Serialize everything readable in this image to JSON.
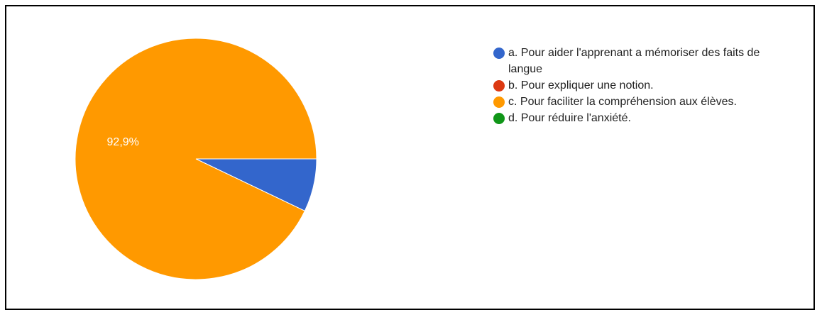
{
  "chart_data": {
    "type": "pie",
    "title": "",
    "categories": [
      "a. Pour aider l'apprenant a mémoriser des faits de langue",
      "b. Pour expliquer une notion.",
      "c. Pour faciliter la compréhension aux élèves.",
      "d. Pour réduire l'anxiété."
    ],
    "values": [
      7.1,
      0,
      92.9,
      0
    ],
    "colors": [
      "#3366cc",
      "#dc3912",
      "#ff9900",
      "#109618"
    ],
    "data_labels": [
      "",
      "",
      "92,9%",
      ""
    ],
    "legend_position": "right"
  }
}
